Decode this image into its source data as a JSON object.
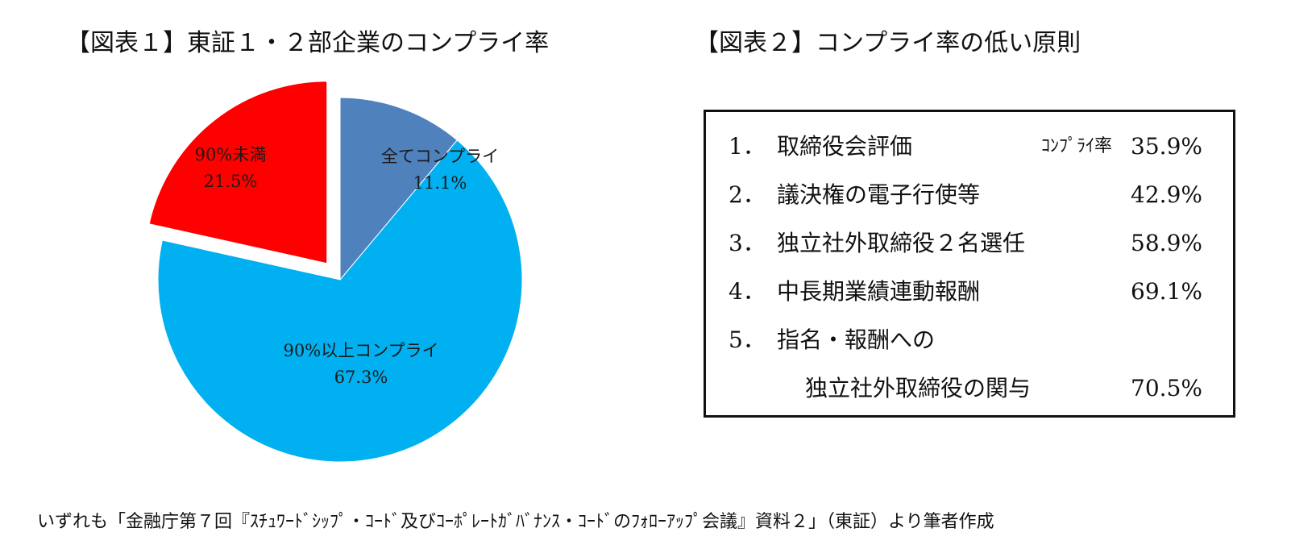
{
  "fig1": {
    "title": "【図表１】東証１・２部企業のコンプライ率"
  },
  "fig2": {
    "title": "【図表２】コンプライ率の低い原則",
    "rate_header": "ｺﾝﾌﾟﾗｲ率",
    "rows": [
      {
        "num": "1．",
        "name": "取締役会評価",
        "value": "35.9%"
      },
      {
        "num": "2．",
        "name": "議決権の電子行使等",
        "value": "42.9%"
      },
      {
        "num": "3．",
        "name": "独立社外取締役２名選任",
        "value": "58.9%"
      },
      {
        "num": "4．",
        "name": "中長期業績連動報酬",
        "value": "69.1%"
      },
      {
        "num": "5．",
        "name": "指名・報酬への",
        "value": ""
      },
      {
        "num": "",
        "name": "独立社外取締役の関与",
        "value": "70.5%"
      }
    ]
  },
  "chart_data": {
    "type": "pie",
    "title": "【図表１】東証１・２部企業のコンプライ率",
    "slices": [
      {
        "label": "全てコンプライ",
        "value": 11.1,
        "value_label": "11.1%",
        "color": "#4f81bd",
        "exploded": false
      },
      {
        "label": "90%以上コンプライ",
        "value": 67.3,
        "value_label": "67.3%",
        "color": "#00b0f0",
        "exploded": false
      },
      {
        "label": "90%未満",
        "value": 21.5,
        "value_label": "21.5%",
        "color": "#ff0000",
        "exploded": true
      }
    ],
    "start_angle_deg": 0,
    "direction": "clockwise"
  },
  "footnote": "いずれも「金融庁第７回『ｽﾁｭﾜｰﾄﾞｼｯﾌﾟ・ｺｰﾄﾞ及びｺｰﾎﾟﾚｰﾄｶﾞﾊﾞﾅﾝｽ・ｺｰﾄﾞのﾌｫﾛｰｱｯﾌﾟ会議』資料２」（東証）より筆者作成"
}
